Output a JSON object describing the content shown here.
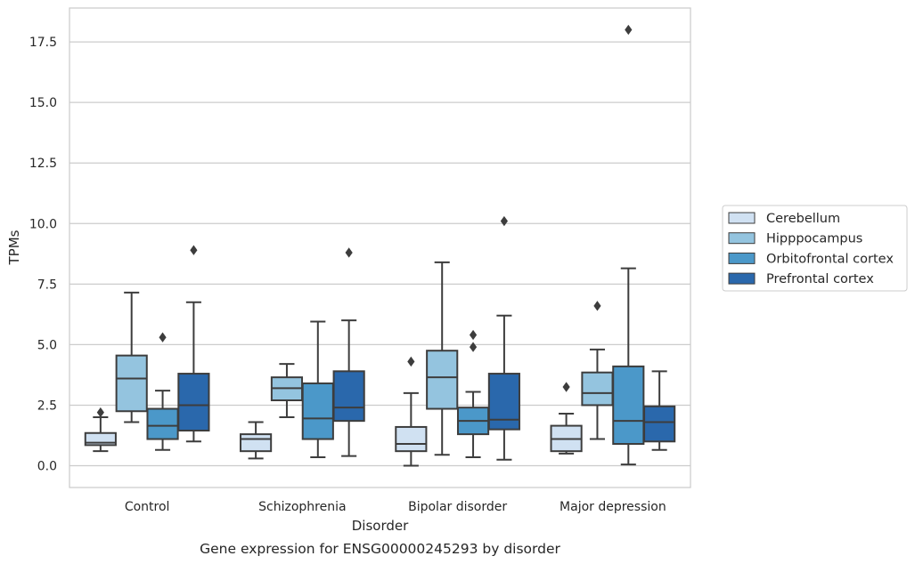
{
  "chart_data": {
    "type": "box",
    "xlabel": "Disorder",
    "ylabel": "TPMs",
    "caption": "Gene expression for ENSG00000245293 by disorder",
    "categories": [
      "Control",
      "Schizophrenia",
      "Bipolar disorder",
      "Major depression"
    ],
    "ylim": [
      -0.9,
      18.9
    ],
    "yticks": [
      0.0,
      2.5,
      5.0,
      7.5,
      10.0,
      12.5,
      15.0,
      17.5
    ],
    "ytick_labels": [
      "0.0",
      "2.5",
      "5.0",
      "7.5",
      "10.0",
      "12.5",
      "15.0",
      "17.5"
    ],
    "grid": "horizontal",
    "legend_position": "right",
    "series": [
      {
        "name": "Cerebellum",
        "color": "#d0e1f2",
        "boxes": [
          {
            "whisker_low": 0.6,
            "q1": 0.85,
            "median": 0.95,
            "q3": 1.35,
            "whisker_high": 2.0,
            "outliers": [
              2.2
            ]
          },
          {
            "whisker_low": 0.3,
            "q1": 0.6,
            "median": 1.1,
            "q3": 1.3,
            "whisker_high": 1.8,
            "outliers": []
          },
          {
            "whisker_low": 0.0,
            "q1": 0.6,
            "median": 0.9,
            "q3": 1.6,
            "whisker_high": 3.0,
            "outliers": [
              4.3
            ]
          },
          {
            "whisker_low": 0.5,
            "q1": 0.6,
            "median": 1.1,
            "q3": 1.65,
            "whisker_high": 2.15,
            "outliers": [
              3.25
            ]
          }
        ]
      },
      {
        "name": "Hipppocampus",
        "color": "#94c4df",
        "boxes": [
          {
            "whisker_low": 1.8,
            "q1": 2.25,
            "median": 3.6,
            "q3": 4.55,
            "whisker_high": 7.15,
            "outliers": []
          },
          {
            "whisker_low": 2.0,
            "q1": 2.7,
            "median": 3.2,
            "q3": 3.65,
            "whisker_high": 4.2,
            "outliers": []
          },
          {
            "whisker_low": 0.45,
            "q1": 2.35,
            "median": 3.65,
            "q3": 4.75,
            "whisker_high": 8.4,
            "outliers": []
          },
          {
            "whisker_low": 1.1,
            "q1": 2.5,
            "median": 3.0,
            "q3": 3.85,
            "whisker_high": 4.8,
            "outliers": [
              6.6
            ]
          }
        ]
      },
      {
        "name": "Orbitofrontal cortex",
        "color": "#4b98c9",
        "boxes": [
          {
            "whisker_low": 0.65,
            "q1": 1.1,
            "median": 1.65,
            "q3": 2.35,
            "whisker_high": 3.1,
            "outliers": [
              5.3
            ]
          },
          {
            "whisker_low": 0.35,
            "q1": 1.1,
            "median": 1.95,
            "q3": 3.4,
            "whisker_high": 5.95,
            "outliers": []
          },
          {
            "whisker_low": 0.35,
            "q1": 1.3,
            "median": 1.85,
            "q3": 2.4,
            "whisker_high": 3.05,
            "outliers": [
              4.9,
              5.4
            ]
          },
          {
            "whisker_low": 0.05,
            "q1": 0.9,
            "median": 1.85,
            "q3": 4.1,
            "whisker_high": 8.15,
            "outliers": [
              18.0
            ]
          }
        ]
      },
      {
        "name": "Prefrontal cortex",
        "color": "#2a68ac",
        "boxes": [
          {
            "whisker_low": 1.0,
            "q1": 1.45,
            "median": 2.5,
            "q3": 3.8,
            "whisker_high": 6.75,
            "outliers": [
              8.9
            ]
          },
          {
            "whisker_low": 0.4,
            "q1": 1.85,
            "median": 2.4,
            "q3": 3.9,
            "whisker_high": 6.0,
            "outliers": [
              8.8
            ]
          },
          {
            "whisker_low": 0.25,
            "q1": 1.5,
            "median": 1.9,
            "q3": 3.8,
            "whisker_high": 6.2,
            "outliers": [
              10.1
            ]
          },
          {
            "whisker_low": 0.65,
            "q1": 1.0,
            "median": 1.8,
            "q3": 2.45,
            "whisker_high": 3.9,
            "outliers": []
          }
        ]
      }
    ]
  }
}
